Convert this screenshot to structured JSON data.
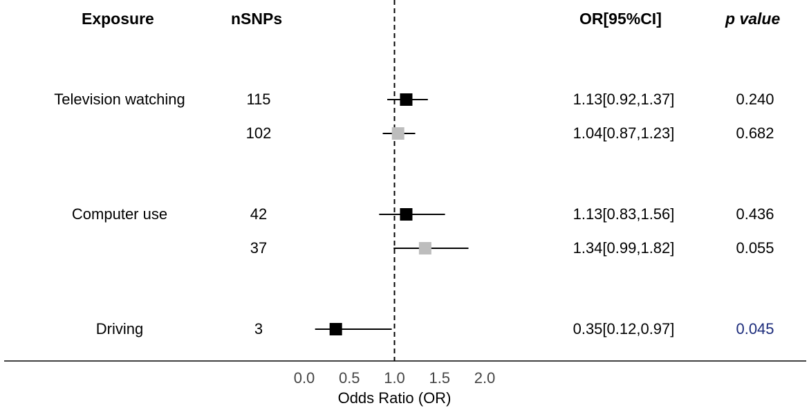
{
  "headers": {
    "exposure": "Exposure",
    "nsnps": "nSNPs",
    "or_ci": "OR[95%CI]",
    "p_value": "p value"
  },
  "colors": {
    "primary_marker": "#000000",
    "secondary_marker": "#bdbdbd",
    "significant_p": "#1a2a7a"
  },
  "chart_data": {
    "type": "forest",
    "xlabel": "Odds Ratio (OR)",
    "xlim": [
      0.0,
      2.0
    ],
    "xticks": [
      "0.0",
      "0.5",
      "1.0",
      "1.5",
      "2.0"
    ],
    "reference_line": 1.0,
    "rows": [
      {
        "exposure": "Television watching",
        "nsnps": "115",
        "or": 1.13,
        "lo": 0.92,
        "hi": 1.37,
        "ci_text": "1.13[0.92,1.37]",
        "p": "0.240",
        "marker": "primary",
        "significant": false
      },
      {
        "exposure": "",
        "nsnps": "102",
        "or": 1.04,
        "lo": 0.87,
        "hi": 1.23,
        "ci_text": "1.04[0.87,1.23]",
        "p": "0.682",
        "marker": "secondary",
        "significant": false
      },
      {
        "exposure": "Computer use",
        "nsnps": "42",
        "or": 1.13,
        "lo": 0.83,
        "hi": 1.56,
        "ci_text": "1.13[0.83,1.56]",
        "p": "0.436",
        "marker": "primary",
        "significant": false
      },
      {
        "exposure": "",
        "nsnps": "37",
        "or": 1.34,
        "lo": 0.99,
        "hi": 1.82,
        "ci_text": "1.34[0.99,1.82]",
        "p": "0.055",
        "marker": "secondary",
        "significant": false
      },
      {
        "exposure": "Driving",
        "nsnps": "3",
        "or": 0.35,
        "lo": 0.12,
        "hi": 0.97,
        "ci_text": "0.35[0.12,0.97]",
        "p": "0.045",
        "marker": "primary",
        "significant": true
      }
    ]
  }
}
